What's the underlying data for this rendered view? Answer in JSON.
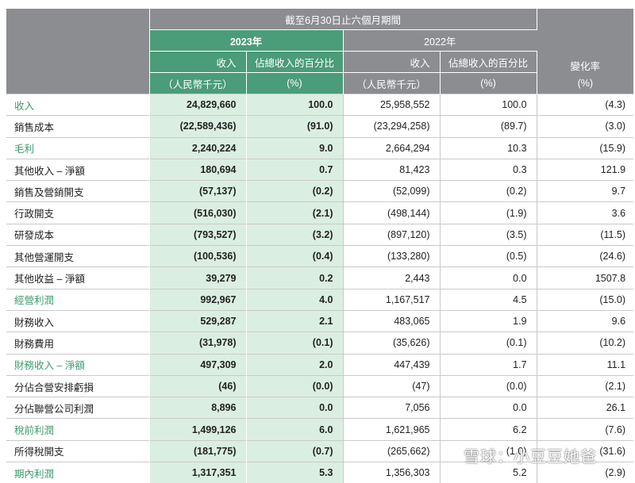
{
  "header": {
    "period": "截至6月30日止六個月期間",
    "year_2023": "2023年",
    "year_2022": "2022年",
    "col_revenue": "收入",
    "col_pct": "佔總收入的百分比",
    "col_change": "變化率",
    "unit_rmb": "（人民幣千元）",
    "unit_pct": "(%)"
  },
  "rows": [
    {
      "label": "收入",
      "rev2023": "24,829,660",
      "pct2023": "100.0",
      "rev2022": "25,958,552",
      "pct2022": "100.0",
      "change": "(4.3)",
      "highlight": true
    },
    {
      "label": "銷售成本",
      "rev2023": "(22,589,436)",
      "pct2023": "(91.0)",
      "rev2022": "(23,294,258)",
      "pct2022": "(89.7)",
      "change": "(3.0)",
      "highlight": false
    },
    {
      "label": "毛利",
      "rev2023": "2,240,224",
      "pct2023": "9.0",
      "rev2022": "2,664,294",
      "pct2022": "10.3",
      "change": "(15.9)",
      "highlight": true
    },
    {
      "label": "其他收入 – 淨額",
      "rev2023": "180,694",
      "pct2023": "0.7",
      "rev2022": "81,423",
      "pct2022": "0.3",
      "change": "121.9",
      "highlight": false
    },
    {
      "label": "銷售及營銷開支",
      "rev2023": "(57,137)",
      "pct2023": "(0.2)",
      "rev2022": "(52,099)",
      "pct2022": "(0.2)",
      "change": "9.7",
      "highlight": false
    },
    {
      "label": "行政開支",
      "rev2023": "(516,030)",
      "pct2023": "(2.1)",
      "rev2022": "(498,144)",
      "pct2022": "(1.9)",
      "change": "3.6",
      "highlight": false
    },
    {
      "label": "研發成本",
      "rev2023": "(793,527)",
      "pct2023": "(3.2)",
      "rev2022": "(897,120)",
      "pct2022": "(3.5)",
      "change": "(11.5)",
      "highlight": false
    },
    {
      "label": "其他營運開支",
      "rev2023": "(100,536)",
      "pct2023": "(0.4)",
      "rev2022": "(133,280)",
      "pct2022": "(0.5)",
      "change": "(24.6)",
      "highlight": false
    },
    {
      "label": "其他收益 – 淨額",
      "rev2023": "39,279",
      "pct2023": "0.2",
      "rev2022": "2,443",
      "pct2022": "0.0",
      "change": "1507.8",
      "highlight": false
    },
    {
      "label": "經營利潤",
      "rev2023": "992,967",
      "pct2023": "4.0",
      "rev2022": "1,167,517",
      "pct2022": "4.5",
      "change": "(15.0)",
      "highlight": true
    },
    {
      "label": "財務收入",
      "rev2023": "529,287",
      "pct2023": "2.1",
      "rev2022": "483,065",
      "pct2022": "1.9",
      "change": "9.6",
      "highlight": false
    },
    {
      "label": "財務費用",
      "rev2023": "(31,978)",
      "pct2023": "(0.1)",
      "rev2022": "(35,626)",
      "pct2022": "(0.1)",
      "change": "(10.2)",
      "highlight": false
    },
    {
      "label": "財務收入 – 淨額",
      "rev2023": "497,309",
      "pct2023": "2.0",
      "rev2022": "447,439",
      "pct2022": "1.7",
      "change": "11.1",
      "highlight": true
    },
    {
      "label": "分佔合營安排虧損",
      "rev2023": "(46)",
      "pct2023": "(0.0)",
      "rev2022": "(47)",
      "pct2022": "(0.0)",
      "change": "(2.1)",
      "highlight": false
    },
    {
      "label": "分佔聯營公司利潤",
      "rev2023": "8,896",
      "pct2023": "0.0",
      "rev2022": "7,056",
      "pct2022": "0.0",
      "change": "26.1",
      "highlight": false
    },
    {
      "label": "稅前利潤",
      "rev2023": "1,499,126",
      "pct2023": "6.0",
      "rev2022": "1,621,965",
      "pct2022": "6.2",
      "change": "(7.6)",
      "highlight": true
    },
    {
      "label": "所得稅開支",
      "rev2023": "(181,775)",
      "pct2023": "(0.7)",
      "rev2022": "(265,662)",
      "pct2022": "(1.0)",
      "change": "(31.6)",
      "highlight": false
    },
    {
      "label": "期內利潤",
      "rev2023": "1,317,351",
      "pct2023": "5.3",
      "rev2022": "1,356,303",
      "pct2022": "5.2",
      "change": "(2.9)",
      "highlight": true
    }
  ],
  "watermark": "雪球：小豆豆她爸",
  "colors": {
    "header_gray": "#8b8d90",
    "header_green": "#4b9c78",
    "col2023_bg": "#dbeee2",
    "label_green": "#3e9c6f"
  }
}
